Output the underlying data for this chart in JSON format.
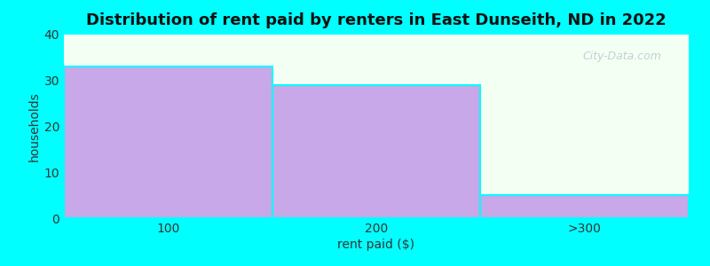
{
  "categories": [
    "100",
    "200",
    ">300"
  ],
  "values": [
    33,
    29,
    5
  ],
  "bar_color": "#c8a8e8",
  "bar_edgecolor": "#c8a8e8",
  "title": "Distribution of rent paid by renters in East Dunseith, ND in 2022",
  "xlabel": "rent paid ($)",
  "ylabel": "households",
  "ylim": [
    0,
    40
  ],
  "yticks": [
    0,
    10,
    20,
    30,
    40
  ],
  "background_color": "#00ffff",
  "plot_bg_color": "#f4fff4",
  "title_fontsize": 13,
  "axis_label_fontsize": 10,
  "tick_fontsize": 10,
  "bar_width": 1.0,
  "separator_color": "#00ffff",
  "watermark": "City-Data.com"
}
